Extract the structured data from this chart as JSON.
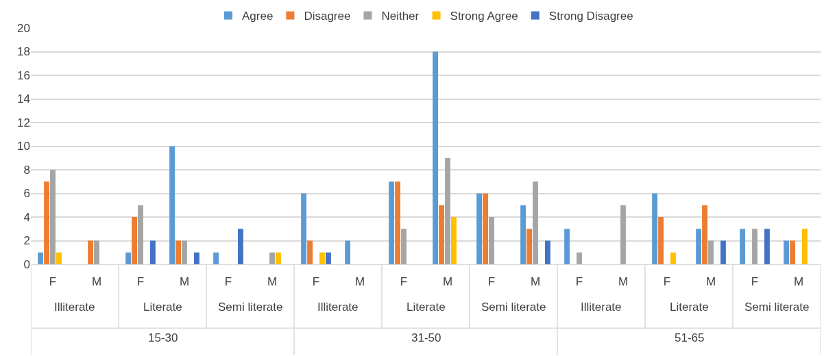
{
  "chart_data": {
    "type": "bar",
    "categories": [
      "F",
      "M",
      "F",
      "M",
      "F",
      "M",
      "F",
      "M",
      "F",
      "M",
      "F",
      "M",
      "F",
      "M",
      "F",
      "M",
      "F",
      "M"
    ],
    "series": [
      {
        "name": "Agree",
        "color": "#5b9bd5",
        "values": [
          1,
          0,
          1,
          10,
          1,
          0,
          6,
          2,
          7,
          18,
          6,
          5,
          3,
          0,
          6,
          3,
          3,
          2
        ]
      },
      {
        "name": "Disagree",
        "color": "#ed7d31",
        "values": [
          7,
          2,
          4,
          2,
          0,
          0,
          2,
          0,
          7,
          5,
          6,
          3,
          0,
          0,
          4,
          5,
          0,
          2
        ]
      },
      {
        "name": "Neither",
        "color": "#a5a5a5",
        "values": [
          8,
          2,
          5,
          2,
          0,
          1,
          0,
          0,
          3,
          9,
          4,
          7,
          1,
          5,
          0,
          2,
          3,
          0
        ]
      },
      {
        "name": "Strong Agree",
        "color": "#ffc000",
        "values": [
          1,
          0,
          0,
          0,
          0,
          1,
          1,
          0,
          0,
          4,
          0,
          0,
          0,
          0,
          1,
          0,
          0,
          3
        ]
      },
      {
        "name": "Strong Disagree",
        "color": "#4472c4",
        "values": [
          0,
          0,
          2,
          1,
          3,
          0,
          1,
          0,
          0,
          0,
          0,
          2,
          0,
          0,
          0,
          2,
          3,
          0
        ]
      }
    ],
    "annotations": [
      "Illiterate",
      "Literate",
      "Semi literate",
      "Illiterate",
      "Literate",
      "Semi literate",
      "Illiterate",
      "Literate",
      "Semi literate",
      "15-30",
      "31-50",
      "51-65"
    ],
    "ylim": [
      0,
      20
    ],
    "yticks": [
      0,
      2,
      4,
      6,
      8,
      10,
      12,
      14,
      16,
      18,
      20
    ],
    "grid": "y",
    "legend": "top"
  }
}
